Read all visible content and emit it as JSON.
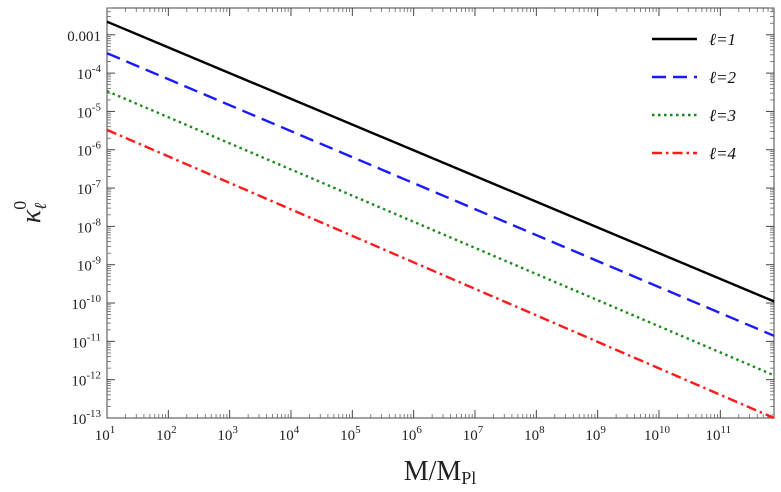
{
  "chart_data": {
    "type": "line",
    "title": "",
    "xlabel": "M/M",
    "xlabel_sub": "Pl",
    "ylabel": "κ",
    "ylabel_sup": "0",
    "ylabel_sub": "ℓ",
    "x_scale": "log",
    "y_scale": "log",
    "xlim": [
      10,
      750000000000.0
    ],
    "ylim": [
      1e-13,
      0.005
    ],
    "grid": false,
    "legend_position": "top-right",
    "x_ticks": [
      {
        "value": 10.0,
        "base": "10",
        "exp": "1"
      },
      {
        "value": 100.0,
        "base": "10",
        "exp": "2"
      },
      {
        "value": 1000.0,
        "base": "10",
        "exp": "3"
      },
      {
        "value": 10000.0,
        "base": "10",
        "exp": "4"
      },
      {
        "value": 100000.0,
        "base": "10",
        "exp": "5"
      },
      {
        "value": 1000000.0,
        "base": "10",
        "exp": "6"
      },
      {
        "value": 10000000.0,
        "base": "10",
        "exp": "7"
      },
      {
        "value": 100000000.0,
        "base": "10",
        "exp": "8"
      },
      {
        "value": 1000000000.0,
        "base": "10",
        "exp": "9"
      },
      {
        "value": 10000000000.0,
        "base": "10",
        "exp": "10"
      },
      {
        "value": 100000000000.0,
        "base": "10",
        "exp": "11"
      }
    ],
    "y_ticks": [
      {
        "value": 0.001,
        "base": "0.001",
        "exp": ""
      },
      {
        "value": 0.0001,
        "base": "10",
        "exp": "-4"
      },
      {
        "value": 1e-05,
        "base": "10",
        "exp": "-5"
      },
      {
        "value": 1e-06,
        "base": "10",
        "exp": "-6"
      },
      {
        "value": 1e-07,
        "base": "10",
        "exp": "-7"
      },
      {
        "value": 1e-08,
        "base": "10",
        "exp": "-8"
      },
      {
        "value": 1e-09,
        "base": "10",
        "exp": "-9"
      },
      {
        "value": 1e-10,
        "base": "10",
        "exp": "-10"
      },
      {
        "value": 1e-11,
        "base": "10",
        "exp": "-11"
      },
      {
        "value": 1e-12,
        "base": "10",
        "exp": "-12"
      },
      {
        "value": 1e-13,
        "base": "10",
        "exp": "-13"
      }
    ],
    "series": [
      {
        "name": "ℓ=1",
        "color": "#000000",
        "style": "solid",
        "x": [
          10,
          750000000000.0
        ],
        "y": [
          0.0022,
          1.1e-10
        ]
      },
      {
        "name": "ℓ=2",
        "color": "#1a1aff",
        "style": "dashed",
        "x": [
          10,
          750000000000.0
        ],
        "y": [
          0.00033,
          1.4e-11
        ]
      },
      {
        "name": "ℓ=3",
        "color": "#1a8a1a",
        "style": "dotted",
        "x": [
          10,
          750000000000.0
        ],
        "y": [
          3.4e-05,
          1.3e-12
        ]
      },
      {
        "name": "ℓ=4",
        "color": "#ff1a1a",
        "style": "dashdot",
        "x": [
          10,
          750000000000.0
        ],
        "y": [
          3.3e-06,
          1e-13
        ]
      }
    ]
  }
}
